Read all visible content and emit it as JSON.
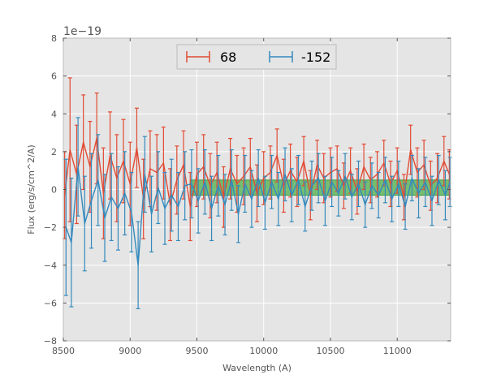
{
  "chart_data": {
    "type": "line",
    "title": "",
    "xlabel": "Wavelength (A)",
    "ylabel": "Flux (erg/s/cm^2/A)",
    "y_offset_label": "1e−19",
    "xlim": [
      8500,
      11400
    ],
    "ylim": [
      -8,
      8
    ],
    "xticks": [
      8500,
      9000,
      9500,
      10000,
      10500,
      11000
    ],
    "xtick_labels": [
      "8500",
      "9000",
      "9500",
      "10000",
      "10500",
      "11000"
    ],
    "yticks": [
      -8,
      -6,
      -4,
      -2,
      0,
      2,
      4,
      6,
      8
    ],
    "ytick_labels": [
      "−8",
      "−6",
      "−4",
      "−2",
      "0",
      "2",
      "4",
      "6",
      "8"
    ],
    "grid": true,
    "legend_location": "top-center",
    "band": {
      "x": [
        9450,
        11400
      ],
      "y_low": -0.3,
      "y_high": 0.5,
      "color": "#3a9d3a",
      "fill": "#4daf4a",
      "label": ""
    },
    "series": [
      {
        "name": "68",
        "color": "#E24A33",
        "x": [
          8510,
          8550,
          8600,
          8650,
          8700,
          8750,
          8800,
          8850,
          8900,
          8950,
          9000,
          9050,
          9100,
          9150,
          9200,
          9250,
          9300,
          9350,
          9400,
          9450,
          9500,
          9550,
          9600,
          9650,
          9700,
          9750,
          9800,
          9850,
          9900,
          9950,
          10000,
          10050,
          10100,
          10150,
          10200,
          10250,
          10300,
          10350,
          10400,
          10450,
          10500,
          10550,
          10600,
          10650,
          10700,
          10750,
          10800,
          10850,
          10900,
          10950,
          11000,
          11050,
          11100,
          11150,
          11200,
          11250,
          11300,
          11350,
          11390
        ],
        "y": [
          -0.3,
          2.1,
          0.8,
          2.5,
          1.2,
          2.7,
          -0.2,
          1.8,
          0.6,
          1.5,
          0.3,
          2.2,
          -0.5,
          1.1,
          0.9,
          1.4,
          -0.8,
          0.5,
          1.3,
          -0.9,
          0.8,
          1.2,
          0.2,
          0.9,
          -0.4,
          1.1,
          0.3,
          0.7,
          1.2,
          -0.2,
          0.6,
          0.9,
          1.8,
          0.2,
          1.0,
          0.4,
          1.5,
          -0.3,
          1.3,
          0.6,
          0.9,
          1.1,
          0.2,
          1.0,
          -0.1,
          1.2,
          0.5,
          0.8,
          1.4,
          0.3,
          1.0,
          -0.4,
          2.1,
          0.9,
          1.3,
          0.2,
          0.6,
          1.5,
          0.8
        ],
        "err": [
          2.3,
          3.8,
          2.6,
          2.5,
          2.4,
          2.4,
          2.4,
          2.3,
          2.3,
          2.2,
          2.2,
          2.1,
          2.1,
          2.0,
          2.0,
          1.9,
          1.9,
          1.8,
          1.8,
          1.8,
          1.7,
          1.7,
          1.7,
          1.6,
          1.6,
          1.6,
          1.5,
          1.5,
          1.5,
          1.5,
          1.4,
          1.4,
          1.4,
          1.4,
          1.4,
          1.3,
          1.3,
          1.3,
          1.3,
          1.3,
          1.3,
          1.2,
          1.2,
          1.2,
          1.2,
          1.2,
          1.2,
          1.2,
          1.2,
          1.2,
          1.2,
          1.2,
          1.3,
          1.3,
          1.3,
          1.3,
          1.3,
          1.3,
          1.3
        ]
      },
      {
        "name": "-152",
        "color": "#348ABD",
        "x": [
          8520,
          8560,
          8610,
          8660,
          8710,
          8760,
          8810,
          8860,
          8910,
          8960,
          9010,
          9060,
          9110,
          9160,
          9210,
          9260,
          9310,
          9360,
          9410,
          9460,
          9510,
          9560,
          9610,
          9660,
          9710,
          9760,
          9810,
          9860,
          9910,
          9960,
          10010,
          10060,
          10110,
          10160,
          10210,
          10260,
          10310,
          10360,
          10410,
          10460,
          10510,
          10560,
          10610,
          10660,
          10710,
          10760,
          10810,
          10860,
          10910,
          10960,
          11010,
          11060,
          11110,
          11160,
          11210,
          11260,
          11310,
          11360,
          11395
        ],
        "y": [
          -2.0,
          -2.8,
          1.2,
          -1.8,
          -0.6,
          0.5,
          -1.5,
          -0.4,
          -1.0,
          -0.2,
          -1.2,
          -4.0,
          0.8,
          -1.3,
          0.1,
          -1.0,
          -0.3,
          -0.9,
          0.2,
          0.3,
          -0.6,
          0.4,
          -1.0,
          0.2,
          -0.8,
          0.5,
          -1.3,
          0.3,
          -0.5,
          0.6,
          -0.7,
          0.4,
          -0.5,
          0.8,
          -0.3,
          0.5,
          -0.9,
          0.2,
          0.6,
          -0.6,
          0.4,
          -0.2,
          0.7,
          -0.4,
          0.3,
          -0.8,
          0.2,
          -0.3,
          0.5,
          -0.5,
          0.3,
          -0.9,
          0.6,
          -0.2,
          0.4,
          -0.6,
          0.5,
          -0.3,
          0.4
        ],
        "err": [
          3.6,
          3.4,
          2.6,
          2.5,
          2.5,
          2.4,
          2.3,
          2.3,
          2.2,
          2.2,
          2.1,
          2.3,
          2.0,
          2.0,
          1.9,
          1.9,
          1.9,
          1.8,
          1.8,
          1.8,
          1.7,
          1.7,
          1.7,
          1.6,
          1.6,
          1.6,
          1.5,
          1.5,
          1.5,
          1.5,
          1.4,
          1.4,
          1.4,
          1.4,
          1.4,
          1.3,
          1.3,
          1.3,
          1.3,
          1.3,
          1.3,
          1.2,
          1.2,
          1.2,
          1.2,
          1.2,
          1.2,
          1.2,
          1.2,
          1.2,
          1.2,
          1.2,
          1.2,
          1.3,
          1.3,
          1.3,
          1.3,
          1.3,
          1.3
        ]
      }
    ]
  }
}
